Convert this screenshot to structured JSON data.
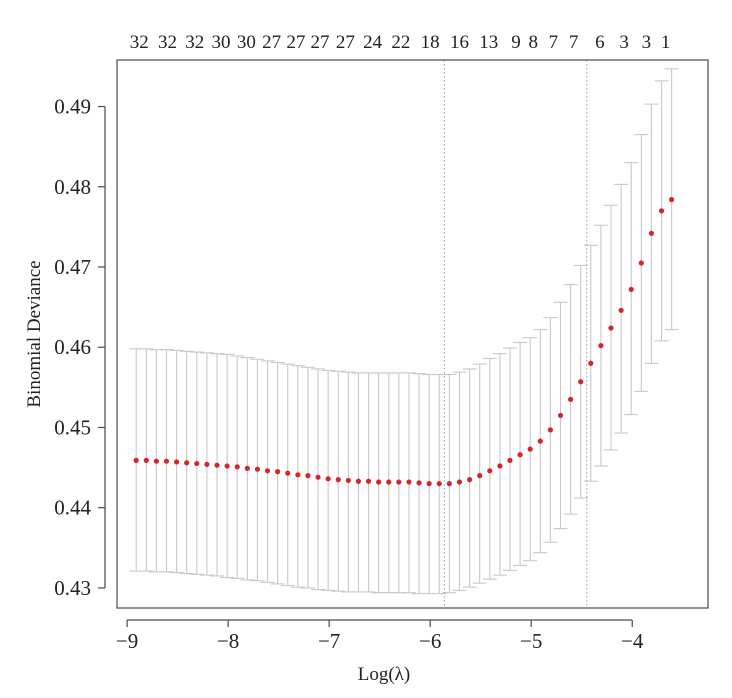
{
  "chart_data": {
    "type": "scatter",
    "title": "",
    "xlabel": "Log(λ)",
    "ylabel": "Binomial Deviance",
    "xlim": [
      -9.1,
      -3.25
    ],
    "ylim": [
      0.4275,
      0.4958
    ],
    "grid": false,
    "legend": "none",
    "point_color": "#d62728",
    "errorbar_color": "#c8c8c8",
    "vline_color": "#999999",
    "x_ticks": [
      -9,
      -8,
      -7,
      -6,
      -5,
      -4
    ],
    "x_tick_labels": [
      "−9",
      "−8",
      "−7",
      "−6",
      "−5",
      "−4"
    ],
    "y_ticks": [
      0.43,
      0.44,
      0.45,
      0.46,
      0.47,
      0.48,
      0.49
    ],
    "y_tick_labels": [
      "0.43",
      "0.44",
      "0.45",
      "0.46",
      "0.47",
      "0.48",
      "0.49"
    ],
    "top_axis": {
      "positions": [
        -8.88,
        -8.6,
        -8.33,
        -8.07,
        -7.82,
        -7.57,
        -7.33,
        -7.09,
        -6.84,
        -6.57,
        -6.29,
        -6.0,
        -5.71,
        -5.42,
        -5.15,
        -4.98,
        -4.78,
        -4.58,
        -4.32,
        -4.08,
        -3.86,
        -3.67
      ],
      "labels": [
        "32",
        "32",
        "32",
        "30",
        "30",
        "27",
        "27",
        "27",
        "27",
        "24",
        "22",
        "18",
        "16",
        "13",
        "9",
        "8",
        "7",
        "7",
        "6",
        "3",
        "3",
        "1"
      ]
    },
    "vlines": [
      -5.86,
      -4.45
    ],
    "x": [
      -8.91,
      -8.81,
      -8.71,
      -8.61,
      -8.51,
      -8.41,
      -8.31,
      -8.21,
      -8.11,
      -8.01,
      -7.91,
      -7.81,
      -7.71,
      -7.61,
      -7.51,
      -7.41,
      -7.31,
      -7.21,
      -7.11,
      -7.01,
      -6.91,
      -6.81,
      -6.71,
      -6.61,
      -6.51,
      -6.41,
      -6.31,
      -6.21,
      -6.11,
      -6.01,
      -5.91,
      -5.81,
      -5.71,
      -5.61,
      -5.51,
      -5.41,
      -5.31,
      -5.21,
      -5.11,
      -5.01,
      -4.91,
      -4.81,
      -4.71,
      -4.61,
      -4.51,
      -4.41,
      -4.31,
      -4.21,
      -4.11,
      -4.01,
      -3.91,
      -3.81,
      -3.71,
      -3.61
    ],
    "y": [
      0.4459,
      0.4459,
      0.4458,
      0.4458,
      0.4457,
      0.4456,
      0.4455,
      0.4454,
      0.4453,
      0.4452,
      0.4451,
      0.4449,
      0.4448,
      0.4446,
      0.4445,
      0.4443,
      0.4441,
      0.444,
      0.4438,
      0.4436,
      0.4435,
      0.4434,
      0.4433,
      0.4433,
      0.4432,
      0.4432,
      0.4432,
      0.4432,
      0.4431,
      0.443,
      0.443,
      0.443,
      0.4432,
      0.4435,
      0.444,
      0.4446,
      0.4452,
      0.4459,
      0.4466,
      0.4473,
      0.4483,
      0.4497,
      0.4515,
      0.4535,
      0.4557,
      0.458,
      0.4602,
      0.4624,
      0.4646,
      0.4672,
      0.4705,
      0.4742,
      0.477,
      0.4784
    ],
    "upper": [
      0.4598,
      0.4598,
      0.4597,
      0.4597,
      0.4596,
      0.4595,
      0.4594,
      0.4593,
      0.4592,
      0.4591,
      0.4589,
      0.4587,
      0.4585,
      0.4583,
      0.4581,
      0.4579,
      0.4577,
      0.4575,
      0.4573,
      0.4571,
      0.457,
      0.4569,
      0.4568,
      0.4568,
      0.4568,
      0.4568,
      0.4568,
      0.4568,
      0.4567,
      0.4566,
      0.4566,
      0.4566,
      0.4569,
      0.4573,
      0.4579,
      0.4586,
      0.4592,
      0.4599,
      0.4606,
      0.4612,
      0.4622,
      0.4637,
      0.4656,
      0.4678,
      0.4702,
      0.4727,
      0.4752,
      0.4777,
      0.4803,
      0.483,
      0.4865,
      0.4903,
      0.4932,
      0.4947
    ],
    "lower": [
      0.4321,
      0.4321,
      0.432,
      0.432,
      0.4319,
      0.4318,
      0.4317,
      0.4316,
      0.4315,
      0.4313,
      0.4312,
      0.431,
      0.4309,
      0.4307,
      0.4305,
      0.4303,
      0.4301,
      0.43,
      0.4298,
      0.4297,
      0.4296,
      0.4295,
      0.4295,
      0.4295,
      0.4294,
      0.4294,
      0.4294,
      0.4294,
      0.4293,
      0.4293,
      0.4293,
      0.4294,
      0.4297,
      0.4301,
      0.4306,
      0.4311,
      0.4316,
      0.4322,
      0.4328,
      0.4334,
      0.4344,
      0.4357,
      0.4374,
      0.4392,
      0.4412,
      0.4433,
      0.4452,
      0.4472,
      0.4493,
      0.4516,
      0.4545,
      0.458,
      0.4608,
      0.4622
    ]
  }
}
